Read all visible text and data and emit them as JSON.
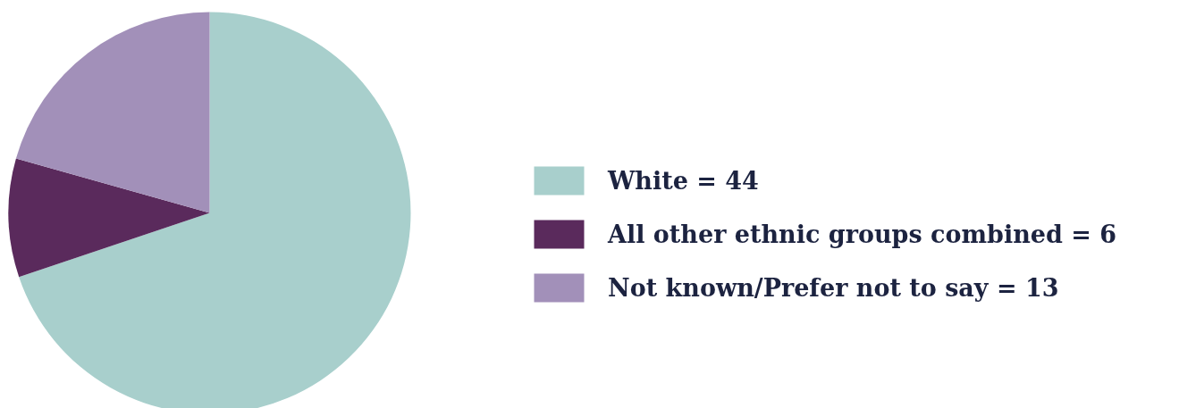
{
  "chart_data": {
    "type": "pie",
    "categories": [
      "White = 44",
      "All other ethnic groups combined = 6",
      "Not known/Prefer not to say = 13"
    ],
    "values": [
      44,
      6,
      13
    ],
    "colors": [
      "#a8cfcc",
      "#5a2a5c",
      "#a290b9"
    ],
    "legend": "right"
  }
}
